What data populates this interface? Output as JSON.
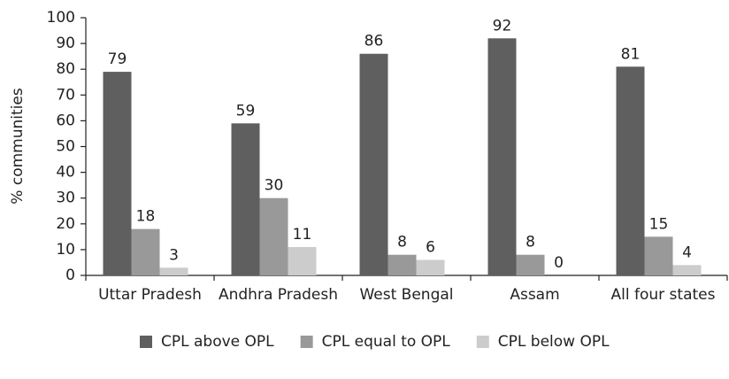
{
  "chart_data": {
    "type": "bar",
    "y_label": "% communities",
    "categories": [
      "Uttar Pradesh",
      "Andhra Pradesh",
      "West Bengal",
      "Assam",
      "All four states"
    ],
    "series": [
      {
        "name": "CPL above OPL",
        "color": "#5f5f5f",
        "values": [
          79,
          59,
          86,
          92,
          81
        ]
      },
      {
        "name": "CPL equal to OPL",
        "color": "#999999",
        "values": [
          18,
          30,
          8,
          8,
          15
        ]
      },
      {
        "name": "CPL below OPL",
        "color": "#cccccc",
        "values": [
          3,
          11,
          6,
          0,
          4
        ]
      }
    ],
    "ylim": [
      0,
      100
    ],
    "yticks": [
      0,
      10,
      20,
      30,
      40,
      50,
      60,
      70,
      80,
      90,
      100
    ],
    "grid": false,
    "legend": "bottom"
  }
}
